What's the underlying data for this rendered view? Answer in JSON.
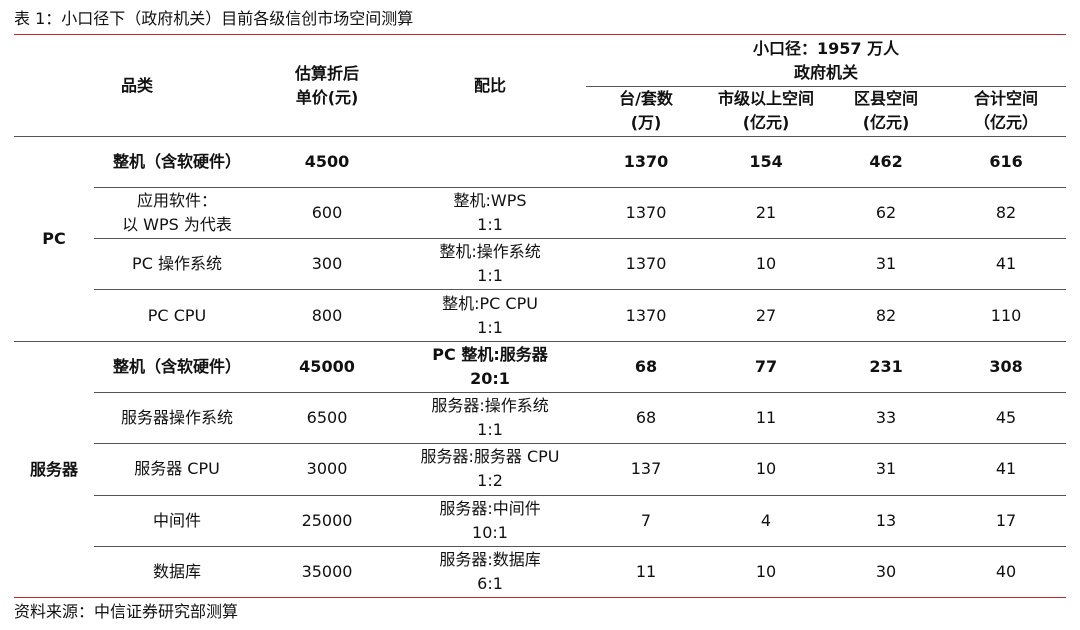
{
  "title": "表 1：小口径下（政府机关）目前各级信创市场空间测算",
  "header": {
    "category": "品类",
    "price_line1": "估算折后",
    "price_line2": "单价(元)",
    "ratio": "配比",
    "group_line1": "小口径：1957 万人",
    "group_line2": "政府机关",
    "col_units_line1": "台/套数",
    "col_units_line2": "(万)",
    "col_city_line1": "市级以上空间",
    "col_city_line2": "(亿元)",
    "col_county_line1": "区县空间",
    "col_county_line2": "(亿元)",
    "col_total_line1": "合计空间",
    "col_total_line2": "（亿元）"
  },
  "groups": [
    {
      "name": "PC",
      "rows": [
        {
          "item": [
            "整机（含软硬件）"
          ],
          "price": "4500",
          "ratio": [],
          "units": "1370",
          "city": "154",
          "county": "462",
          "total": "616",
          "bold": true
        },
        {
          "item": [
            "应用软件：",
            "以 WPS 为代表"
          ],
          "price": "600",
          "ratio": [
            "整机:WPS",
            "1:1"
          ],
          "units": "1370",
          "city": "21",
          "county": "62",
          "total": "82",
          "bold": false
        },
        {
          "item": [
            "PC 操作系统"
          ],
          "price": "300",
          "ratio": [
            "整机:操作系统",
            "1:1"
          ],
          "units": "1370",
          "city": "10",
          "county": "31",
          "total": "41",
          "bold": false
        },
        {
          "item": [
            "PC CPU"
          ],
          "price": "800",
          "ratio": [
            "整机:PC CPU",
            "1:1"
          ],
          "units": "1370",
          "city": "27",
          "county": "82",
          "total": "110",
          "bold": false
        }
      ]
    },
    {
      "name": "服务器",
      "rows": [
        {
          "item": [
            "整机（含软硬件）"
          ],
          "price": "45000",
          "ratio": [
            "PC 整机:服务器",
            "20:1"
          ],
          "units": "68",
          "city": "77",
          "county": "231",
          "total": "308",
          "bold": true
        },
        {
          "item": [
            "服务器操作系统"
          ],
          "price": "6500",
          "ratio": [
            "服务器:操作系统",
            "1:1"
          ],
          "units": "68",
          "city": "11",
          "county": "33",
          "total": "45",
          "bold": false
        },
        {
          "item": [
            "服务器 CPU"
          ],
          "price": "3000",
          "ratio": [
            "服务器:服务器 CPU",
            "1:2"
          ],
          "units": "137",
          "city": "10",
          "county": "31",
          "total": "41",
          "bold": false
        },
        {
          "item": [
            "中间件"
          ],
          "price": "25000",
          "ratio": [
            "服务器:中间件",
            "10:1"
          ],
          "units": "7",
          "city": "4",
          "county": "13",
          "total": "17",
          "bold": false
        },
        {
          "item": [
            "数据库"
          ],
          "price": "35000",
          "ratio": [
            "服务器:数据库",
            "6:1"
          ],
          "units": "11",
          "city": "10",
          "county": "30",
          "total": "40",
          "bold": false
        }
      ]
    }
  ],
  "source": "资料来源：中信证券研究部测算"
}
